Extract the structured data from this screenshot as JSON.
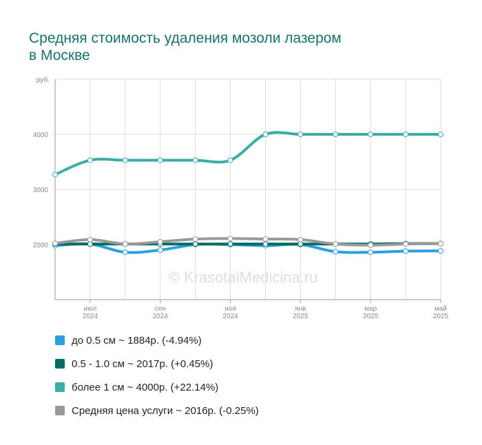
{
  "chart_data": {
    "type": "line",
    "title": "Средняя стоимость удаления мозоли лазером в Москве",
    "y_unit_label": "руб.",
    "watermark": "© KrasotaiMedicina.ru",
    "categories": [
      null,
      "июл 2024",
      null,
      "сен 2024",
      null,
      "ноя 2024",
      null,
      "янв 2025",
      null,
      "мар 2025",
      null,
      "май 2025"
    ],
    "ylim": [
      1000,
      5000
    ],
    "yticks": [
      2000,
      3000,
      4000
    ],
    "grid": true,
    "series": [
      {
        "name": "до 0.5 см ~ 1884р. (-4.94%)",
        "color": "#2b9fe0",
        "values": [
          1980,
          2010,
          1860,
          1900,
          2000,
          2000,
          1980,
          2000,
          1870,
          1860,
          1880,
          1884
        ]
      },
      {
        "name": "0.5 - 1.0 см ~ 2017р. (+0.45%)",
        "color": "#006b63",
        "values": [
          2010,
          2010,
          2010,
          2010,
          2010,
          2010,
          2010,
          2010,
          2010,
          2010,
          2017,
          2017
        ]
      },
      {
        "name": "более 1 см ~ 4000р. (+22.14%)",
        "color": "#3aada5",
        "values": [
          3270,
          3530,
          3530,
          3530,
          3530,
          3530,
          4000,
          4000,
          4000,
          4000,
          4000,
          4000
        ]
      },
      {
        "name": "Средняя цена услуги ~ 2016р. (-0.25%)",
        "color": "#999999",
        "values": [
          2020,
          2090,
          2010,
          2050,
          2100,
          2110,
          2100,
          2090,
          2010,
          1990,
          2010,
          2016
        ]
      }
    ]
  }
}
